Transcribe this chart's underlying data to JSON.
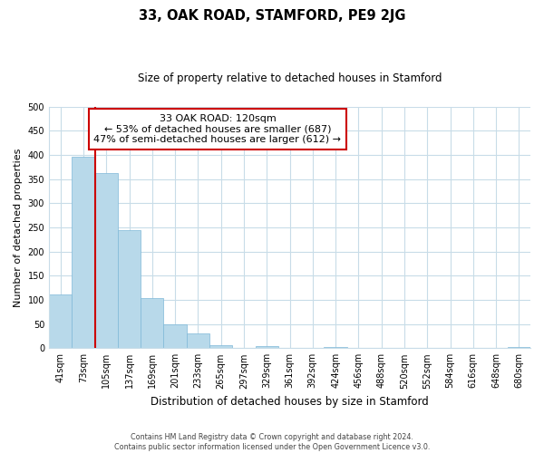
{
  "title": "33, OAK ROAD, STAMFORD, PE9 2JG",
  "subtitle": "Size of property relative to detached houses in Stamford",
  "xlabel": "Distribution of detached houses by size in Stamford",
  "ylabel": "Number of detached properties",
  "bar_labels": [
    "41sqm",
    "73sqm",
    "105sqm",
    "137sqm",
    "169sqm",
    "201sqm",
    "233sqm",
    "265sqm",
    "297sqm",
    "329sqm",
    "361sqm",
    "392sqm",
    "424sqm",
    "456sqm",
    "488sqm",
    "520sqm",
    "552sqm",
    "584sqm",
    "616sqm",
    "648sqm",
    "680sqm"
  ],
  "bar_values": [
    112,
    397,
    362,
    244,
    103,
    50,
    30,
    7,
    0,
    5,
    0,
    0,
    2,
    0,
    0,
    0,
    0,
    0,
    0,
    0,
    2
  ],
  "bar_color": "#b8d9ea",
  "bar_edge_color": "#7fb8d8",
  "vline_x": 2.0,
  "vline_color": "#cc0000",
  "annotation_text": "33 OAK ROAD: 120sqm\n← 53% of detached houses are smaller (687)\n47% of semi-detached houses are larger (612) →",
  "annotation_box_color": "#ffffff",
  "annotation_box_edgecolor": "#cc0000",
  "ylim": [
    0,
    500
  ],
  "footer_line1": "Contains HM Land Registry data © Crown copyright and database right 2024.",
  "footer_line2": "Contains public sector information licensed under the Open Government Licence v3.0.",
  "background_color": "#ffffff",
  "grid_color": "#c8dce8",
  "title_fontsize": 10.5,
  "subtitle_fontsize": 8.5,
  "ylabel_fontsize": 8,
  "xlabel_fontsize": 8.5,
  "tick_fontsize": 7,
  "footer_fontsize": 5.8
}
